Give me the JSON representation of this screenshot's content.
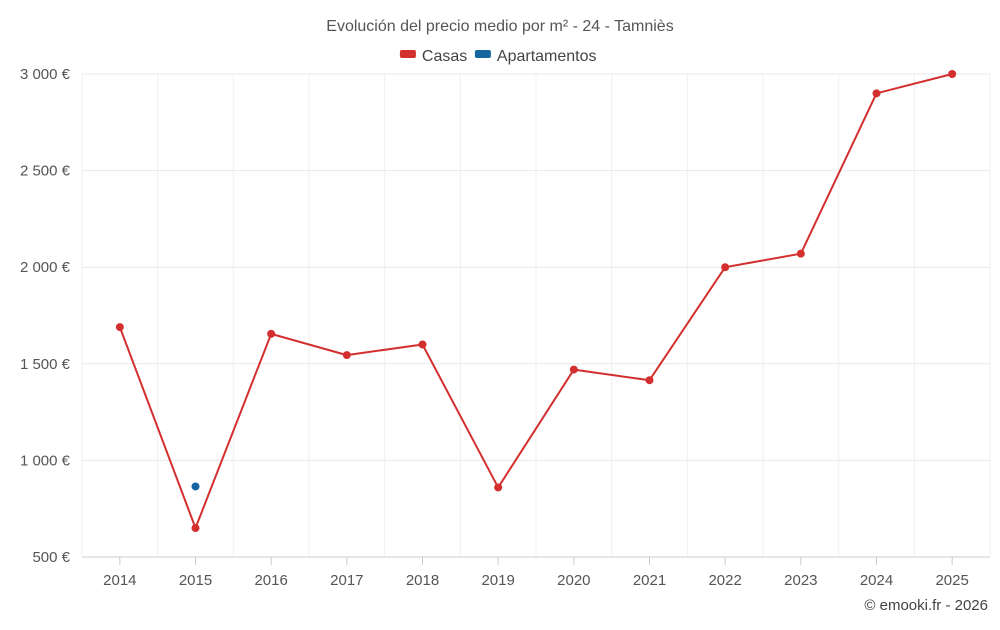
{
  "chart_data": {
    "type": "line",
    "title": "Evolución del precio medio por m² - 24 - Tamniès",
    "credit": "© emooki.fr - 2026",
    "xlabel": "",
    "ylabel": "",
    "categories": [
      "2014",
      "2015",
      "2016",
      "2017",
      "2018",
      "2019",
      "2020",
      "2021",
      "2022",
      "2023",
      "2024",
      "2025"
    ],
    "ylim": [
      500,
      3000
    ],
    "yticks": [
      500,
      1000,
      1500,
      2000,
      2500,
      3000
    ],
    "ytick_labels": [
      "500 €",
      "1 000 €",
      "1 500 €",
      "2 000 €",
      "2 500 €",
      "3 000 €"
    ],
    "grid": true,
    "legend_position": "top-center",
    "series": [
      {
        "name": "Casas",
        "color": "#d32f2f",
        "values": [
          1690,
          650,
          1655,
          1545,
          1600,
          860,
          1470,
          1415,
          2000,
          2070,
          2900,
          3000
        ]
      },
      {
        "name": "Apartamentos",
        "color": "#1565a0",
        "values": [
          null,
          865,
          null,
          null,
          null,
          null,
          null,
          null,
          null,
          null,
          null,
          null
        ]
      }
    ]
  }
}
